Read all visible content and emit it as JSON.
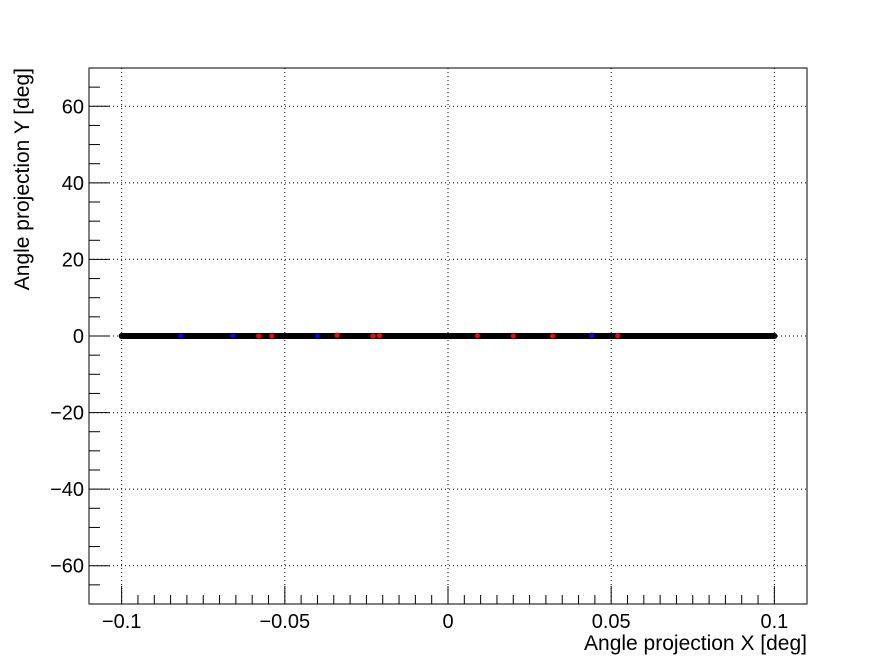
{
  "chart_data": {
    "type": "scatter",
    "title": "",
    "xlabel": "Angle projection X [deg]",
    "ylabel": "Angle projection Y [deg]",
    "xlim": [
      -0.11,
      0.11
    ],
    "ylim": [
      -70,
      70
    ],
    "grid": true,
    "x_ticks": [
      {
        "value": -0.1,
        "label": "−0.1"
      },
      {
        "value": -0.05,
        "label": "−0.05"
      },
      {
        "value": 0,
        "label": "0"
      },
      {
        "value": 0.05,
        "label": "0.05"
      },
      {
        "value": 0.1,
        "label": "0.1"
      }
    ],
    "y_ticks": [
      {
        "value": 60,
        "label": "60"
      },
      {
        "value": 40,
        "label": "40"
      },
      {
        "value": 20,
        "label": "20"
      },
      {
        "value": 0,
        "label": "0"
      },
      {
        "value": -20,
        "label": "−20"
      },
      {
        "value": -40,
        "label": "−40"
      },
      {
        "value": -60,
        "label": "−60"
      }
    ],
    "series": [
      {
        "color": "#000000",
        "marker": "dense-line",
        "x_range": [
          -0.1,
          0.1
        ],
        "y": 0
      },
      {
        "color": "#ff0000",
        "x": [
          -0.058,
          -0.054,
          -0.034,
          -0.023,
          -0.021,
          0.009,
          0.02,
          0.032,
          0.044,
          0.052
        ],
        "y": [
          0,
          0,
          0.2,
          0,
          0.1,
          0.1,
          0,
          0,
          0.1,
          0.1
        ]
      },
      {
        "color": "#0000ff",
        "x": [
          -0.082,
          -0.066,
          -0.04,
          0.044
        ],
        "y": [
          0,
          0.1,
          0,
          0.2
        ]
      }
    ]
  }
}
